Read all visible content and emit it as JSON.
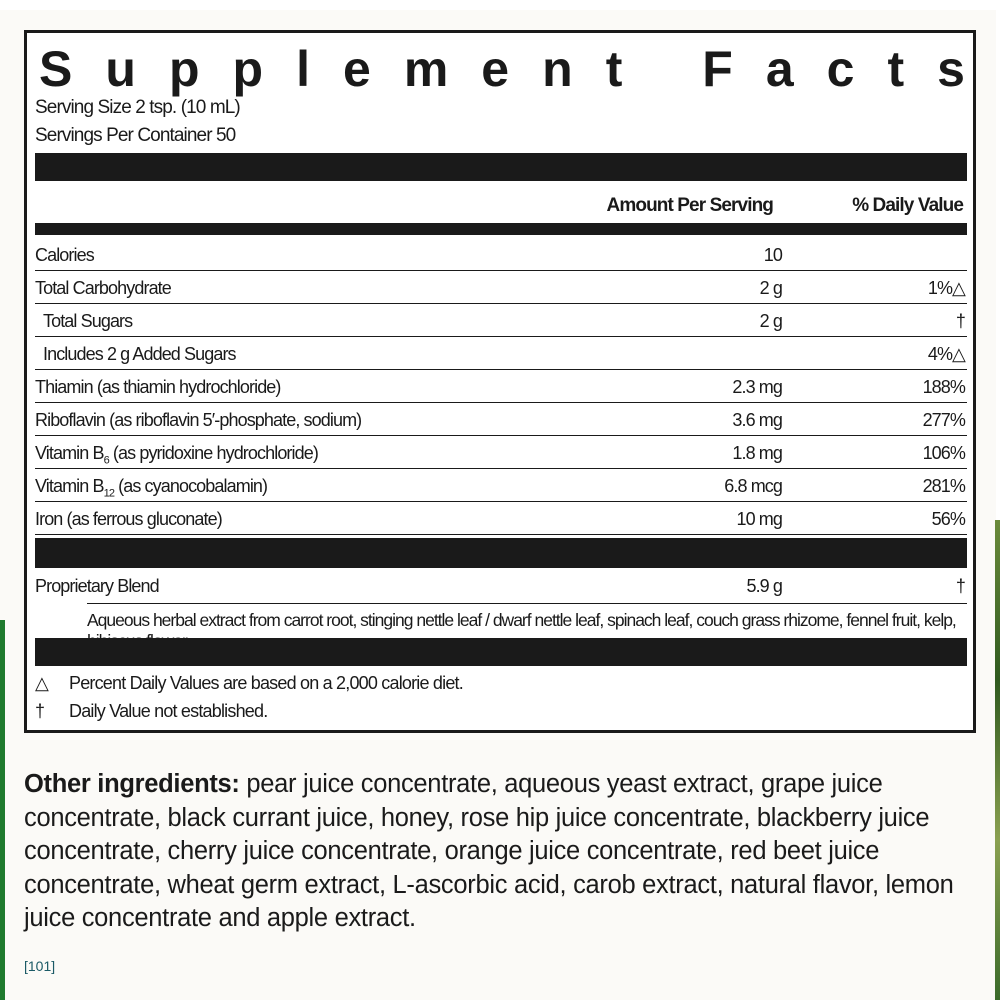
{
  "title": "Supplement Facts",
  "serving_size": "Serving Size 2 tsp. (10 mL)",
  "servings_per_container": "Servings Per Container 50",
  "headers": {
    "amount": "Amount Per Serving",
    "dv": "% Daily Value"
  },
  "rows": [
    {
      "name": "Calories",
      "amount": "10",
      "dv": ""
    },
    {
      "name": "Total Carbohydrate",
      "amount": "2 g",
      "dv": "1%△"
    },
    {
      "name": "Total Sugars",
      "amount": "2 g",
      "dv": "†"
    },
    {
      "name": "Includes 2 g Added Sugars",
      "amount": "",
      "dv": "4%△"
    },
    {
      "name": "Thiamin (as thiamin hydrochloride)",
      "amount": "2.3 mg",
      "dv": "188%"
    },
    {
      "name": "Riboflavin (as riboflavin 5′-phosphate, sodium)",
      "amount": "3.6 mg",
      "dv": "277%"
    },
    {
      "name_pre": "Vitamin B",
      "name_sub": "6",
      "name_post": " (as pyridoxine hydrochloride)",
      "amount": "1.8 mg",
      "dv": "106%"
    },
    {
      "name_pre": "Vitamin B",
      "name_sub": "12",
      "name_post": " (as cyanocobalamin)",
      "amount": "6.8 mcg",
      "dv": "281%"
    },
    {
      "name": "Iron (as ferrous gluconate)",
      "amount": "10 mg",
      "dv": "56%"
    }
  ],
  "blend": {
    "name": "Proprietary Blend",
    "amount": "5.9 g",
    "dv": "†",
    "ingredients": "Aqueous herbal extract from carrot root, stinging nettle leaf / dwarf nettle leaf, spinach leaf, couch grass rhizome, fennel fruit, kelp, hibiscus flower"
  },
  "footnotes": [
    {
      "symbol": "△",
      "text": "Percent Daily Values are based on a 2,000 calorie diet."
    },
    {
      "symbol": "†",
      "text": "Daily Value not established."
    }
  ],
  "other_ingredients": {
    "label": "Other ingredients:",
    "text": " pear juice concentrate, aqueous yeast extract, grape juice concentrate, black currant juice, honey, rose hip juice concentrate, blackberry juice concentrate, cherry juice concentrate, orange juice concentrate, red beet juice concentrate, wheat germ extract, L-ascorbic acid, carob extract, natural flavor, lemon juice concentrate and apple extract."
  },
  "code": "[101]",
  "colors": {
    "text": "#1a1a1a",
    "code": "#1b5a66",
    "green_edge": "#1f7a2e"
  }
}
